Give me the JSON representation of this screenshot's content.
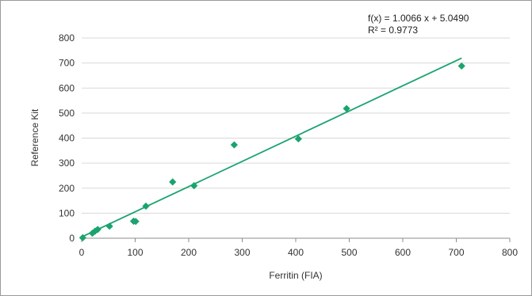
{
  "chart_data": {
    "type": "scatter",
    "xlabel": "Ferritin (FIA)",
    "ylabel": "Reference Kit",
    "xlim": [
      0,
      800
    ],
    "ylim": [
      0,
      800
    ],
    "xticks": [
      "0",
      "100",
      "200",
      "300",
      "400",
      "500",
      "600",
      "700",
      "800"
    ],
    "yticks": [
      "0",
      "100",
      "200",
      "300",
      "400",
      "500",
      "600",
      "700",
      "800"
    ],
    "grid": true,
    "series": [
      {
        "name": "",
        "points": [
          {
            "x": 2,
            "y": 2
          },
          {
            "x": 20,
            "y": 20
          },
          {
            "x": 25,
            "y": 28
          },
          {
            "x": 30,
            "y": 35
          },
          {
            "x": 52,
            "y": 48
          },
          {
            "x": 97,
            "y": 68
          },
          {
            "x": 101,
            "y": 67
          },
          {
            "x": 120,
            "y": 128
          },
          {
            "x": 170,
            "y": 225
          },
          {
            "x": 210,
            "y": 210
          },
          {
            "x": 285,
            "y": 373
          },
          {
            "x": 405,
            "y": 397
          },
          {
            "x": 495,
            "y": 518
          },
          {
            "x": 710,
            "y": 688
          }
        ]
      }
    ],
    "trendline": {
      "slope": 1.0066,
      "intercept": 5.049,
      "x_range": [
        0,
        710
      ],
      "equation": "f(x) = 1.0066 x + 5.0490",
      "r_squared": "R² = 0.9773"
    },
    "colors": {
      "marker": "#1aa36f",
      "trendline": "#1aa36f",
      "grid": "#d9d9d9",
      "axis": "#8c8c8c",
      "border": "#9a9a9a"
    }
  }
}
